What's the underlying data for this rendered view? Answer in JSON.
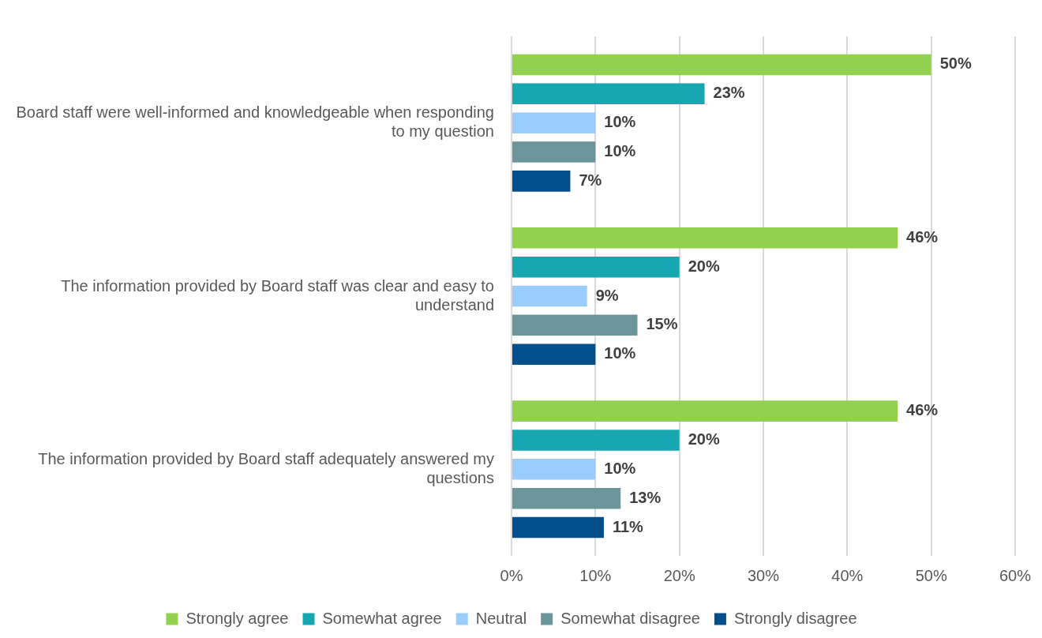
{
  "chart_data": {
    "type": "bar",
    "orientation": "horizontal",
    "categories": [
      "Board staff were well-informed and knowledgeable when responding to my question",
      "The information provided by Board staff was clear and easy to understand",
      "The information provided by Board staff adequately answered my questions"
    ],
    "series": [
      {
        "name": "Strongly agree",
        "color": "#92d050",
        "values": [
          50,
          46,
          46
        ],
        "value_labels": [
          "50%",
          "46%",
          "46%"
        ]
      },
      {
        "name": "Somewhat agree",
        "color": "#17a7b1",
        "values": [
          23,
          20,
          20
        ],
        "value_labels": [
          "23%",
          "20%",
          "20%"
        ]
      },
      {
        "name": "Neutral",
        "color": "#99ccff",
        "values": [
          10,
          9,
          10
        ],
        "value_labels": [
          "10%",
          "9%",
          "10%"
        ]
      },
      {
        "name": "Somewhat disagree",
        "color": "#6b959b",
        "values": [
          10,
          15,
          13
        ],
        "value_labels": [
          "10%",
          "15%",
          "13%"
        ]
      },
      {
        "name": "Strongly disagree",
        "color": "#034f8c",
        "values": [
          7,
          10,
          11
        ],
        "value_labels": [
          "7%",
          "10%",
          "11%"
        ]
      }
    ],
    "xlim": [
      0,
      60
    ],
    "xticks": [
      {
        "value": 0,
        "label": "0%"
      },
      {
        "value": 10,
        "label": "10%"
      },
      {
        "value": 20,
        "label": "20%"
      },
      {
        "value": 30,
        "label": "30%"
      },
      {
        "value": 40,
        "label": "40%"
      },
      {
        "value": 50,
        "label": "50%"
      },
      {
        "value": 60,
        "label": "60%"
      }
    ],
    "grid": "x",
    "legend": "bottom"
  }
}
